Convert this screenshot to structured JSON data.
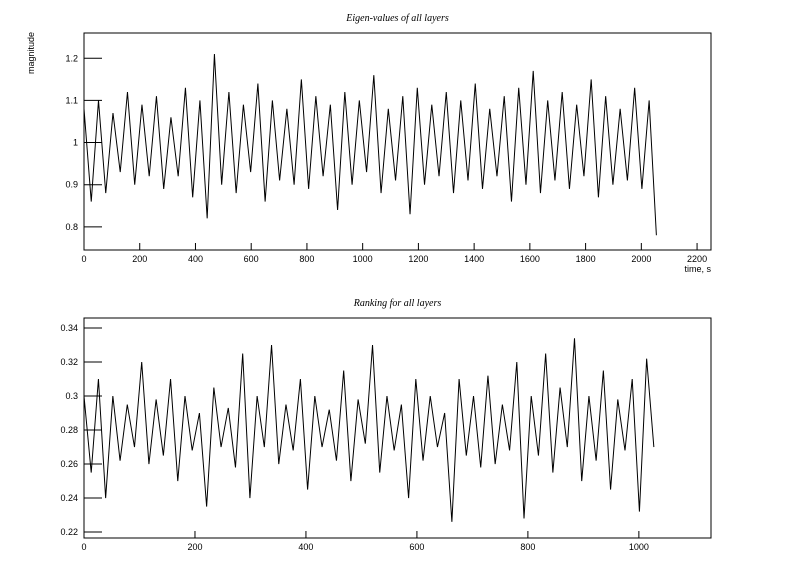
{
  "chart_data": [
    {
      "type": "line",
      "title": "Eigen-values of all layers",
      "y_label": "magnitude",
      "x_label": "time, s",
      "xlim": [
        0,
        2250
      ],
      "xticks": [
        0,
        200,
        400,
        600,
        800,
        1000,
        1200,
        1400,
        1600,
        1800,
        2000,
        2200
      ],
      "ylim": [
        0.745,
        1.26
      ],
      "yticks": [
        0.8,
        0.9,
        1,
        1.1,
        1.2
      ],
      "series": [
        {
          "color": "#000000",
          "x": [
            0,
            26,
            52,
            78,
            104,
            130,
            156,
            182,
            208,
            234,
            260,
            286,
            312,
            338,
            364,
            390,
            416,
            442,
            468,
            494,
            520,
            546,
            572,
            598,
            624,
            650,
            676,
            702,
            728,
            754,
            780,
            806,
            832,
            858,
            884,
            910,
            936,
            962,
            988,
            1014,
            1040,
            1066,
            1092,
            1118,
            1144,
            1170,
            1196,
            1222,
            1248,
            1274,
            1300,
            1326,
            1352,
            1378,
            1404,
            1430,
            1456,
            1482,
            1508,
            1534,
            1560,
            1586,
            1612,
            1638,
            1664,
            1690,
            1716,
            1742,
            1768,
            1794,
            1820,
            1846,
            1872,
            1898,
            1924,
            1950,
            1976,
            2002,
            2028,
            2054
          ],
          "values": [
            1.08,
            0.86,
            1.1,
            0.88,
            1.07,
            0.93,
            1.12,
            0.9,
            1.09,
            0.92,
            1.11,
            0.89,
            1.06,
            0.92,
            1.13,
            0.87,
            1.1,
            0.82,
            1.21,
            0.9,
            1.12,
            0.88,
            1.09,
            0.93,
            1.14,
            0.86,
            1.1,
            0.91,
            1.08,
            0.9,
            1.15,
            0.89,
            1.11,
            0.92,
            1.09,
            0.84,
            1.12,
            0.9,
            1.1,
            0.93,
            1.16,
            0.88,
            1.08,
            0.91,
            1.11,
            0.83,
            1.13,
            0.9,
            1.09,
            0.92,
            1.12,
            0.88,
            1.1,
            0.91,
            1.14,
            0.89,
            1.08,
            0.92,
            1.11,
            0.86,
            1.13,
            0.9,
            1.17,
            0.88,
            1.1,
            0.91,
            1.12,
            0.89,
            1.09,
            0.92,
            1.15,
            0.87,
            1.11,
            0.9,
            1.08,
            0.91,
            1.13,
            0.89,
            1.1,
            0.78
          ]
        }
      ]
    },
    {
      "type": "line",
      "title": "Ranking for all layers",
      "xlim": [
        0,
        1130
      ],
      "xticks": [
        0,
        200,
        400,
        600,
        800,
        1000
      ],
      "ylim": [
        0.2165,
        0.3459
      ],
      "yticks": [
        0.22,
        0.24,
        0.26,
        0.28,
        0.3,
        0.32,
        0.34
      ],
      "series": [
        {
          "color": "#000000",
          "x": [
            0,
            13,
            26,
            39,
            52,
            65,
            78,
            91,
            104,
            117,
            130,
            143,
            156,
            169,
            182,
            195,
            208,
            221,
            234,
            247,
            260,
            273,
            286,
            299,
            312,
            325,
            338,
            351,
            364,
            377,
            390,
            403,
            416,
            429,
            442,
            455,
            468,
            481,
            494,
            507,
            520,
            533,
            546,
            559,
            572,
            585,
            598,
            611,
            624,
            637,
            650,
            663,
            676,
            689,
            702,
            715,
            728,
            741,
            754,
            767,
            780,
            793,
            806,
            819,
            832,
            845,
            858,
            871,
            884,
            897,
            910,
            923,
            936,
            949,
            962,
            975,
            988,
            1001,
            1014,
            1027
          ],
          "values": [
            0.3,
            0.255,
            0.31,
            0.24,
            0.3,
            0.262,
            0.295,
            0.27,
            0.32,
            0.26,
            0.298,
            0.265,
            0.31,
            0.25,
            0.3,
            0.268,
            0.29,
            0.235,
            0.305,
            0.27,
            0.293,
            0.258,
            0.325,
            0.24,
            0.3,
            0.27,
            0.33,
            0.26,
            0.295,
            0.268,
            0.31,
            0.245,
            0.3,
            0.27,
            0.292,
            0.262,
            0.315,
            0.25,
            0.298,
            0.272,
            0.33,
            0.255,
            0.3,
            0.268,
            0.295,
            0.24,
            0.31,
            0.262,
            0.3,
            0.27,
            0.29,
            0.226,
            0.31,
            0.265,
            0.3,
            0.258,
            0.312,
            0.26,
            0.295,
            0.268,
            0.32,
            0.228,
            0.3,
            0.265,
            0.325,
            0.255,
            0.305,
            0.27,
            0.334,
            0.25,
            0.3,
            0.262,
            0.315,
            0.245,
            0.298,
            0.268,
            0.31,
            0.232,
            0.322,
            0.27
          ]
        }
      ]
    }
  ]
}
